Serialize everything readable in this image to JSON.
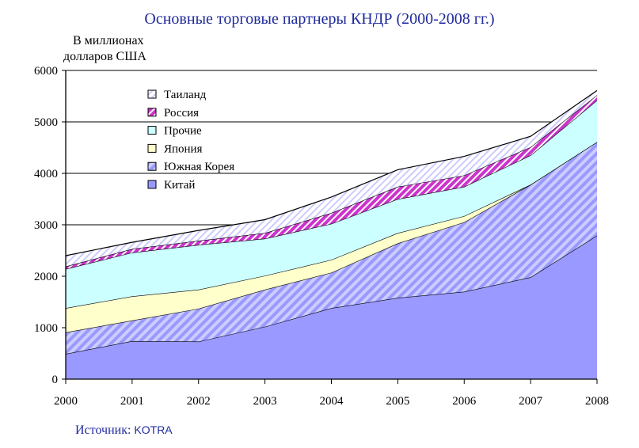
{
  "chart_data": {
    "type": "area",
    "stacked": true,
    "title": "Основные торговые партнеры КНДР (2000-2008 гг.)",
    "ylabel_lines": [
      "В миллионах",
      "долларов США"
    ],
    "x": [
      "2000",
      "2001",
      "2002",
      "2003",
      "2004",
      "2005",
      "2006",
      "2007",
      "2008"
    ],
    "ylim": [
      0,
      6000
    ],
    "yticks": [
      0,
      1000,
      2000,
      3000,
      4000,
      5000,
      6000
    ],
    "grid": true,
    "legend_position": "top-left",
    "series": [
      {
        "name": "Китай",
        "color": "#9999ff",
        "pattern": "solid",
        "values": [
          490,
          740,
          730,
          1020,
          1380,
          1580,
          1700,
          1980,
          2790
        ]
      },
      {
        "name": "Южная Корея",
        "color": "#9999ff",
        "pattern": "hatch",
        "values": [
          420,
          400,
          640,
          720,
          690,
          1060,
          1350,
          1800,
          1820
        ]
      },
      {
        "name": "Япония",
        "color": "#ffffcc",
        "pattern": "solid",
        "values": [
          470,
          470,
          370,
          270,
          250,
          200,
          120,
          0,
          0
        ]
      },
      {
        "name": "Прочие",
        "color": "#ccffff",
        "pattern": "solid",
        "values": [
          760,
          850,
          870,
          720,
          700,
          660,
          570,
          570,
          810
        ]
      },
      {
        "name": "Россия",
        "color": "#cc33cc",
        "pattern": "hatch",
        "values": [
          50,
          70,
          80,
          110,
          210,
          240,
          220,
          160,
          100
        ]
      },
      {
        "name": "Таиланд",
        "color": "#ccccff",
        "pattern": "hatch",
        "values": [
          210,
          130,
          200,
          260,
          310,
          330,
          370,
          210,
          90
        ]
      }
    ]
  },
  "source": {
    "label": "Источник:",
    "org": "KOTRA"
  }
}
